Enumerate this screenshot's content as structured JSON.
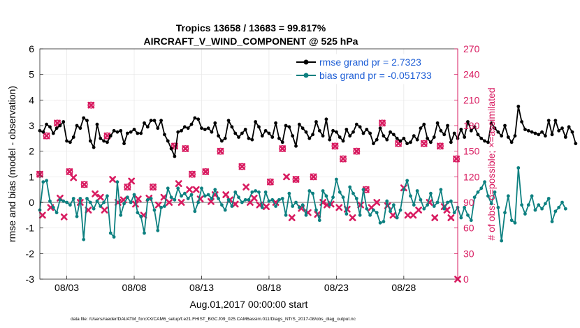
{
  "chart_data": {
    "type": "line",
    "title_line1": "Tropics 13658 / 13683 = 99.817%",
    "title_line2": "AIRCRAFT_V_WIND_COMPONENT @ 525 hPa",
    "xlabel": "Aug.01,2017 00:00:00 start",
    "ylabel_left": "rmse and bias (model - observation)",
    "ylabel_right": "# of obs: o=possible; ×=assimilated",
    "footnote": "data file: /Users/raeder/DAI/ATM_forcXX/CAM6_setup/f.e21.FHIST_BGC.f09_025.CAM6assim.011/Diags_NTrS_2017-08/obs_diag_output.nc",
    "x_range": [
      1.0,
      32.0
    ],
    "y_range": [
      -3,
      6
    ],
    "y2_range": [
      0,
      270
    ],
    "x_ticks": [
      {
        "value": 3,
        "label": "08/03"
      },
      {
        "value": 8,
        "label": "08/08"
      },
      {
        "value": 13,
        "label": "08/13"
      },
      {
        "value": 18,
        "label": "08/18"
      },
      {
        "value": 23,
        "label": "08/23"
      },
      {
        "value": 28,
        "label": "08/28"
      }
    ],
    "y_ticks": [
      {
        "value": 6,
        "label": "6"
      },
      {
        "value": 5,
        "label": "5"
      },
      {
        "value": 4,
        "label": "4"
      },
      {
        "value": 3,
        "label": "3"
      },
      {
        "value": 2,
        "label": "2"
      },
      {
        "value": 1,
        "label": "1"
      },
      {
        "value": 0,
        "label": "0"
      },
      {
        "value": -1,
        "label": "-1"
      },
      {
        "value": -2,
        "label": "-2"
      },
      {
        "value": -3,
        "label": "-3"
      }
    ],
    "y2_ticks": [
      {
        "value": 270,
        "label": "270"
      },
      {
        "value": 240,
        "label": "240"
      },
      {
        "value": 210,
        "label": "210"
      },
      {
        "value": 180,
        "label": "180"
      },
      {
        "value": 150,
        "label": "150"
      },
      {
        "value": 120,
        "label": "120"
      },
      {
        "value": 90,
        "label": "90"
      },
      {
        "value": 60,
        "label": "60"
      },
      {
        "value": 30,
        "label": "30"
      },
      {
        "value": 0,
        "label": "0"
      }
    ],
    "legend": [
      {
        "name": "rmse grand pr = 2.7323",
        "color": "#000000"
      },
      {
        "name": "bias grand pr = -0.051733",
        "color": "#0d8080"
      }
    ],
    "x_start": 1.0,
    "x_step": 0.25,
    "series": [
      {
        "name": "rmse",
        "color": "#000000",
        "values": [
          2.8,
          2.75,
          3.05,
          2.95,
          2.7,
          2.9,
          3.0,
          3.15,
          2.4,
          2.35,
          2.55,
          3.0,
          2.9,
          3.3,
          3.2,
          2.4,
          2.15,
          3.05,
          2.5,
          2.4,
          2.35,
          2.6,
          2.8,
          2.75,
          2.8,
          2.3,
          2.7,
          2.75,
          2.85,
          2.7,
          2.7,
          3.1,
          2.95,
          3.2,
          3.2,
          2.9,
          3.2,
          2.65,
          2.4,
          2.1,
          1.8,
          2.75,
          2.8,
          2.95,
          2.9,
          3.05,
          3.3,
          3.25,
          2.9,
          2.85,
          2.9,
          2.75,
          3.1,
          2.6,
          2.4,
          2.5,
          3.2,
          2.95,
          2.7,
          2.55,
          2.7,
          2.85,
          2.5,
          2.45,
          3.15,
          2.95,
          2.6,
          2.8,
          2.7,
          2.55,
          3.1,
          2.5,
          2.35,
          3.0,
          2.95,
          2.6,
          2.2,
          3.05,
          2.9,
          2.75,
          2.5,
          2.65,
          3.15,
          2.8,
          2.6,
          3.25,
          2.45,
          2.8,
          2.75,
          2.55,
          2.4,
          2.85,
          2.6,
          2.75,
          3.05,
          2.95,
          2.7,
          2.85,
          2.7,
          2.3,
          2.45,
          2.9,
          2.6,
          2.45,
          2.75,
          2.65,
          2.5,
          2.4,
          2.5,
          2.3,
          2.35,
          2.6,
          2.45,
          2.9,
          3.05,
          2.5,
          2.35,
          2.55,
          3.1,
          2.8,
          2.65,
          3.0,
          2.35,
          2.7,
          2.5,
          2.85,
          2.55,
          3.15,
          2.8,
          2.95,
          2.65,
          2.5,
          2.4,
          2.35,
          3.1,
          2.9,
          2.75,
          2.6,
          3.0,
          2.55,
          2.35,
          2.6,
          3.75,
          3.15,
          2.85,
          2.8,
          2.75,
          2.7,
          2.65,
          2.75,
          2.6,
          3.2,
          2.65,
          3.2,
          2.8,
          2.9,
          2.55,
          2.95,
          2.75,
          2.3
        ]
      },
      {
        "name": "bias",
        "color": "#0d8080",
        "values": [
          -0.3,
          0.8,
          0.85,
          0.05,
          -0.2,
          -0.4,
          0.1,
          0.05,
          0.0,
          -0.1,
          0.15,
          -0.55,
          0.15,
          -1.45,
          0.15,
          0.0,
          -0.25,
          0.05,
          -0.15,
          0.0,
          0.25,
          -1.2,
          -1.35,
          0.8,
          -0.5,
          -0.05,
          0.2,
          0.0,
          0.3,
          -0.4,
          -0.55,
          -1.2,
          0.1,
          0.15,
          -0.3,
          -1.1,
          -0.2,
          -0.15,
          0.55,
          0.2,
          0.1,
          0.55,
          0.25,
          0.35,
          0.15,
          0.3,
          -0.35,
          0.0,
          0.55,
          0.25,
          0.3,
          0.15,
          0.5,
          0.15,
          -0.1,
          -0.3,
          0.1,
          -0.15,
          0.4,
          0.2,
          0.0,
          0.1,
          0.1,
          0.4,
          0.45,
          0.4,
          -0.2,
          0.4,
          0.05,
          0.1,
          -0.15,
          0.1,
          0.15,
          -0.5,
          0.35,
          -0.15,
          0.0,
          -0.2,
          -0.1,
          -0.5,
          0.45,
          0.35,
          -0.3,
          -0.7,
          0.45,
          0.25,
          -0.1,
          0.2,
          0.9,
          0.4,
          0.2,
          -0.45,
          0.6,
          0.35,
          0.15,
          -0.5,
          0.5,
          -0.25,
          -0.5,
          -0.3,
          -0.4,
          -0.8,
          -0.75,
          0.05,
          -0.35,
          -0.1,
          -0.6,
          -0.3,
          0.5,
          0.85,
          0.25,
          -0.1,
          0.45,
          0.1,
          -0.25,
          -0.1,
          0.35,
          -0.15,
          0.0,
          0.5,
          -0.25,
          0.0,
          0.05,
          -0.4,
          -0.2,
          -0.6,
          -0.2,
          -0.5,
          -0.7,
          0.2,
          0.4,
          0.55,
          0.8,
          0.25,
          -0.05,
          0.4,
          -0.2,
          -1.5,
          -0.4,
          0.25,
          -0.7,
          -0.8,
          1.35,
          -0.1,
          -0.45,
          -0.1,
          0.25,
          -0.3,
          -0.1,
          -0.25,
          -0.05,
          0.15,
          -0.75,
          -0.35,
          -0.2,
          0.0,
          -0.25
        ]
      }
    ],
    "possible_obs": {
      "name": "possible (o)",
      "color": "#d81b60",
      "points": [
        [
          1.0,
          123.0
        ],
        [
          1.5,
          168.0
        ],
        [
          2.3,
          183.0
        ],
        [
          3.2,
          126.0
        ],
        [
          4.3,
          111.0
        ],
        [
          4.8,
          204.0
        ],
        [
          6.0,
          168.0
        ],
        [
          7.5,
          108.0
        ],
        [
          9.4,
          108.0
        ],
        [
          11.0,
          156.0
        ],
        [
          11.8,
          153.0
        ],
        [
          12.3,
          123.0
        ],
        [
          13.3,
          126.0
        ],
        [
          14.4,
          150.0
        ],
        [
          16.0,
          132.0
        ],
        [
          18.1,
          114.0
        ],
        [
          19.0,
          153.0
        ],
        [
          20.0,
          117.0
        ],
        [
          21.3,
          120.0
        ],
        [
          22.9,
          156.0
        ],
        [
          23.5,
          141.0
        ],
        [
          24.5,
          150.0
        ],
        [
          25.2,
          105.0
        ],
        [
          26.4,
          183.0
        ],
        [
          27.6,
          159.0
        ],
        [
          29.5,
          159.0
        ],
        [
          30.7,
          156.0
        ],
        [
          31.9,
          141.0
        ]
      ]
    },
    "assimilated_obs": {
      "name": "assimilated (×)",
      "color": "#d81b60",
      "points": [
        [
          1.0,
          123.0
        ],
        [
          1.2,
          75.0
        ],
        [
          1.5,
          168.0
        ],
        [
          1.8,
          84.0
        ],
        [
          2.3,
          183.0
        ],
        [
          2.5,
          95.0
        ],
        [
          2.8,
          73.0
        ],
        [
          3.2,
          126.0
        ],
        [
          3.5,
          119.0
        ],
        [
          4.0,
          90.0
        ],
        [
          4.3,
          111.0
        ],
        [
          4.6,
          81.0
        ],
        [
          4.8,
          204.0
        ],
        [
          5.1,
          100.0
        ],
        [
          5.5,
          96.0
        ],
        [
          5.8,
          81.0
        ],
        [
          6.0,
          168.0
        ],
        [
          6.4,
          117.0
        ],
        [
          6.8,
          90.0
        ],
        [
          7.2,
          93.0
        ],
        [
          7.5,
          108.0
        ],
        [
          7.8,
          115.0
        ],
        [
          8.1,
          88.0
        ],
        [
          8.3,
          94.0
        ],
        [
          8.7,
          75.0
        ],
        [
          9.1,
          95.0
        ],
        [
          9.4,
          108.0
        ],
        [
          9.8,
          87.0
        ],
        [
          10.2,
          96.0
        ],
        [
          10.6,
          90.0
        ],
        [
          11.0,
          156.0
        ],
        [
          11.3,
          112.0
        ],
        [
          11.5,
          90.0
        ],
        [
          11.8,
          153.0
        ],
        [
          12.1,
          105.0
        ],
        [
          12.3,
          123.0
        ],
        [
          12.6,
          105.0
        ],
        [
          12.9,
          94.0
        ],
        [
          13.3,
          126.0
        ],
        [
          13.7,
          91.0
        ],
        [
          14.0,
          99.0
        ],
        [
          14.4,
          150.0
        ],
        [
          14.8,
          99.0
        ],
        [
          15.1,
          93.0
        ],
        [
          15.5,
          88.0
        ],
        [
          16.0,
          132.0
        ],
        [
          16.3,
          108.0
        ],
        [
          16.6,
          90.0
        ],
        [
          16.9,
          95.0
        ],
        [
          17.3,
          87.0
        ],
        [
          17.8,
          85.0
        ],
        [
          18.1,
          114.0
        ],
        [
          18.5,
          90.0
        ],
        [
          19.0,
          153.0
        ],
        [
          19.3,
          120.0
        ],
        [
          19.7,
          72.0
        ],
        [
          20.0,
          117.0
        ],
        [
          20.4,
          83.0
        ],
        [
          20.9,
          78.0
        ],
        [
          21.3,
          120.0
        ],
        [
          21.6,
          76.0
        ],
        [
          22.0,
          90.0
        ],
        [
          22.3,
          87.0
        ],
        [
          22.6,
          88.0
        ],
        [
          22.9,
          156.0
        ],
        [
          23.2,
          84.0
        ],
        [
          23.5,
          141.0
        ],
        [
          23.8,
          82.0
        ],
        [
          24.2,
          72.0
        ],
        [
          24.5,
          150.0
        ],
        [
          24.8,
          87.0
        ],
        [
          25.2,
          105.0
        ],
        [
          25.6,
          84.0
        ],
        [
          26.0,
          90.0
        ],
        [
          26.4,
          183.0
        ],
        [
          26.8,
          86.0
        ],
        [
          27.2,
          75.0
        ],
        [
          27.6,
          159.0
        ],
        [
          28.0,
          107.0
        ],
        [
          28.3,
          75.0
        ],
        [
          28.7,
          75.0
        ],
        [
          29.1,
          81.0
        ],
        [
          29.5,
          159.0
        ],
        [
          29.9,
          90.0
        ],
        [
          30.3,
          72.0
        ],
        [
          30.7,
          156.0
        ],
        [
          31.0,
          85.0
        ],
        [
          31.2,
          81.0
        ],
        [
          31.5,
          72.0
        ],
        [
          31.9,
          141.0
        ],
        [
          32.0,
          0.0
        ]
      ]
    }
  }
}
